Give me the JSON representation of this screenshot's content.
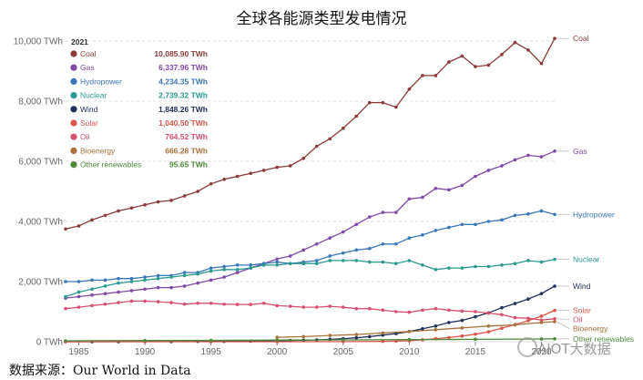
{
  "title": "全球各能源类型发电情况",
  "source_note": "数据来源：Our World in Data",
  "watermark": "AIOT大数据",
  "chart_data": {
    "type": "line",
    "title": "全球各能源类型发电情况",
    "xlabel": "",
    "ylabel": "",
    "xlim": [
      1984,
      2021
    ],
    "ylim": [
      0,
      10000
    ],
    "x_ticks": [
      1985,
      1990,
      1995,
      2000,
      2005,
      2010,
      2015,
      2020
    ],
    "y_ticks": [
      {
        "value": 0,
        "label": "0 TWh"
      },
      {
        "value": 2000,
        "label": "2,000 TWh"
      },
      {
        "value": 4000,
        "label": "4,000 TWh"
      },
      {
        "value": 6000,
        "label": "6,000 TWh"
      },
      {
        "value": 8000,
        "label": "8,000 TWh"
      },
      {
        "value": 10000,
        "label": "10,000 TWh"
      }
    ],
    "grid": true,
    "legend_position": "top-left",
    "legend_year": "2021",
    "series": [
      {
        "name": "Coal",
        "legend_value": "10,085.90 TWh",
        "color": "#8b3a3a",
        "x": [
          1984,
          1985,
          1986,
          1987,
          1988,
          1989,
          1990,
          1991,
          1992,
          1993,
          1994,
          1995,
          1996,
          1997,
          1998,
          1999,
          2000,
          2001,
          2002,
          2003,
          2004,
          2005,
          2006,
          2007,
          2008,
          2009,
          2010,
          2011,
          2012,
          2013,
          2014,
          2015,
          2016,
          2017,
          2018,
          2019,
          2020,
          2021
        ],
        "values": [
          3750,
          3850,
          4050,
          4200,
          4350,
          4450,
          4550,
          4650,
          4700,
          4850,
          5000,
          5250,
          5400,
          5500,
          5600,
          5700,
          5800,
          5850,
          6100,
          6500,
          6750,
          7100,
          7500,
          7950,
          7950,
          7800,
          8400,
          8850,
          8850,
          9300,
          9500,
          9150,
          9200,
          9550,
          9950,
          9700,
          9250,
          10086
        ]
      },
      {
        "name": "Gas",
        "legend_value": "6,337.96 TWh",
        "color": "#7e4aa6",
        "x": [
          1984,
          1985,
          1986,
          1987,
          1988,
          1989,
          1990,
          1991,
          1992,
          1993,
          1994,
          1995,
          1996,
          1997,
          1998,
          1999,
          2000,
          2001,
          2002,
          2003,
          2004,
          2005,
          2006,
          2007,
          2008,
          2009,
          2010,
          2011,
          2012,
          2013,
          2014,
          2015,
          2016,
          2017,
          2018,
          2019,
          2020,
          2021
        ],
        "values": [
          1450,
          1500,
          1550,
          1600,
          1650,
          1700,
          1750,
          1800,
          1800,
          1850,
          1950,
          2050,
          2150,
          2300,
          2450,
          2600,
          2750,
          2850,
          3050,
          3250,
          3450,
          3650,
          3900,
          4150,
          4300,
          4300,
          4750,
          4800,
          5100,
          5050,
          5200,
          5500,
          5700,
          5850,
          6050,
          6200,
          6150,
          6338
        ]
      },
      {
        "name": "Hydropower",
        "legend_value": "4,234.35 TWh",
        "color": "#3a77b8",
        "x": [
          1984,
          1985,
          1986,
          1987,
          1988,
          1989,
          1990,
          1991,
          1992,
          1993,
          1994,
          1995,
          1996,
          1997,
          1998,
          1999,
          2000,
          2001,
          2002,
          2003,
          2004,
          2005,
          2006,
          2007,
          2008,
          2009,
          2010,
          2011,
          2012,
          2013,
          2014,
          2015,
          2016,
          2017,
          2018,
          2019,
          2020,
          2021
        ],
        "values": [
          2000,
          2000,
          2050,
          2050,
          2100,
          2100,
          2150,
          2200,
          2200,
          2300,
          2300,
          2450,
          2500,
          2550,
          2550,
          2600,
          2650,
          2600,
          2650,
          2700,
          2850,
          2950,
          3050,
          3100,
          3250,
          3250,
          3450,
          3550,
          3700,
          3800,
          3900,
          3900,
          4000,
          4050,
          4200,
          4250,
          4350,
          4234
        ]
      },
      {
        "name": "Nuclear",
        "legend_value": "2,739.32 TWh",
        "color": "#2a9a90",
        "x": [
          1984,
          1985,
          1986,
          1987,
          1988,
          1989,
          1990,
          1991,
          1992,
          1993,
          1994,
          1995,
          1996,
          1997,
          1998,
          1999,
          2000,
          2001,
          2002,
          2003,
          2004,
          2005,
          2006,
          2007,
          2008,
          2009,
          2010,
          2011,
          2012,
          2013,
          2014,
          2015,
          2016,
          2017,
          2018,
          2019,
          2020,
          2021
        ],
        "values": [
          1500,
          1650,
          1750,
          1850,
          1950,
          2000,
          2050,
          2100,
          2150,
          2200,
          2250,
          2350,
          2400,
          2400,
          2450,
          2550,
          2550,
          2600,
          2600,
          2600,
          2700,
          2700,
          2700,
          2650,
          2650,
          2600,
          2700,
          2550,
          2400,
          2450,
          2450,
          2500,
          2500,
          2550,
          2600,
          2700,
          2650,
          2739
        ]
      },
      {
        "name": "Wind",
        "legend_value": "1,848.26 TWh",
        "color": "#1f2f5a",
        "x": [
          1984,
          1986,
          1988,
          1990,
          1992,
          1994,
          1996,
          1998,
          2000,
          2001,
          2002,
          2003,
          2004,
          2005,
          2006,
          2007,
          2008,
          2009,
          2010,
          2011,
          2012,
          2013,
          2014,
          2015,
          2016,
          2017,
          2018,
          2019,
          2020,
          2021
        ],
        "values": [
          0,
          0,
          0,
          5,
          5,
          10,
          10,
          20,
          30,
          40,
          50,
          60,
          80,
          100,
          130,
          170,
          220,
          270,
          340,
          430,
          520,
          640,
          710,
          830,
          960,
          1130,
          1270,
          1420,
          1600,
          1848
        ]
      },
      {
        "name": "Solar",
        "legend_value": "1,040.50 TWh",
        "color": "#d9574a",
        "x": [
          1984,
          1990,
          1995,
          2000,
          2005,
          2008,
          2009,
          2010,
          2011,
          2012,
          2013,
          2014,
          2015,
          2016,
          2017,
          2018,
          2019,
          2020,
          2021
        ],
        "values": [
          0,
          0,
          0,
          1,
          4,
          12,
          20,
          32,
          64,
          100,
          140,
          190,
          250,
          330,
          450,
          570,
          700,
          850,
          1041
        ]
      },
      {
        "name": "Oil",
        "legend_value": "764.52 TWh",
        "color": "#d4506e",
        "x": [
          1984,
          1985,
          1986,
          1987,
          1988,
          1989,
          1990,
          1991,
          1992,
          1993,
          1994,
          1995,
          1996,
          1997,
          1998,
          1999,
          2000,
          2001,
          2002,
          2003,
          2004,
          2005,
          2006,
          2007,
          2008,
          2009,
          2010,
          2011,
          2012,
          2013,
          2014,
          2015,
          2016,
          2017,
          2018,
          2019,
          2020,
          2021
        ],
        "values": [
          1100,
          1150,
          1200,
          1250,
          1300,
          1350,
          1350,
          1330,
          1300,
          1250,
          1280,
          1280,
          1250,
          1240,
          1240,
          1280,
          1200,
          1180,
          1150,
          1150,
          1180,
          1150,
          1100,
          1100,
          1050,
          1000,
          980,
          1050,
          1100,
          1050,
          1020,
          1000,
          950,
          900,
          800,
          780,
          720,
          765
        ]
      },
      {
        "name": "Bioenergy",
        "legend_value": "666.28 TWh",
        "color": "#a8703a",
        "x": [
          2000,
          2002,
          2004,
          2006,
          2008,
          2010,
          2012,
          2014,
          2016,
          2018,
          2020,
          2021
        ],
        "values": [
          150,
          170,
          210,
          240,
          290,
          340,
          400,
          460,
          520,
          560,
          640,
          666
        ]
      },
      {
        "name": "Other renewables",
        "legend_value": "95.65 TWh",
        "color": "#4e8a3a",
        "x": [
          1984,
          1990,
          1995,
          2000,
          2005,
          2010,
          2015,
          2020,
          2021
        ],
        "values": [
          30,
          40,
          45,
          55,
          60,
          70,
          80,
          92,
          96
        ]
      }
    ]
  }
}
